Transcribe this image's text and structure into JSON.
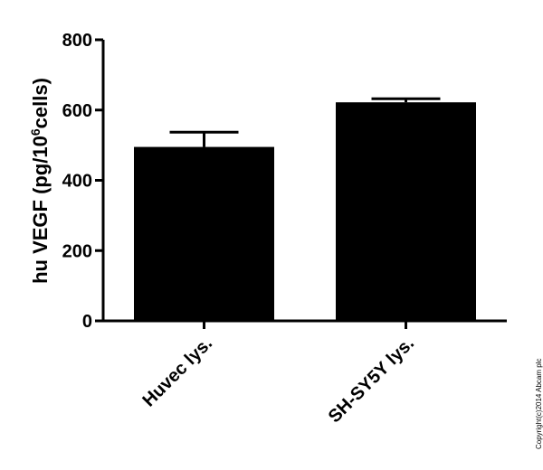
{
  "chart_data": {
    "type": "bar",
    "categories": [
      "Huvec lys.",
      "SH-SY5Y lys."
    ],
    "values": [
      495,
      622
    ],
    "error_plus": [
      42,
      10
    ],
    "ylim": [
      0,
      800
    ],
    "yticks": [
      0,
      200,
      400,
      600,
      800
    ],
    "ylabel_prefix": "hu VEGF (pg/10",
    "ylabel_sup": "6",
    "ylabel_suffix": "cells)",
    "xlabel": "",
    "bar_color": "#000000",
    "grid": false
  },
  "watermark": "Copyright(c)2014 Abcam plc"
}
